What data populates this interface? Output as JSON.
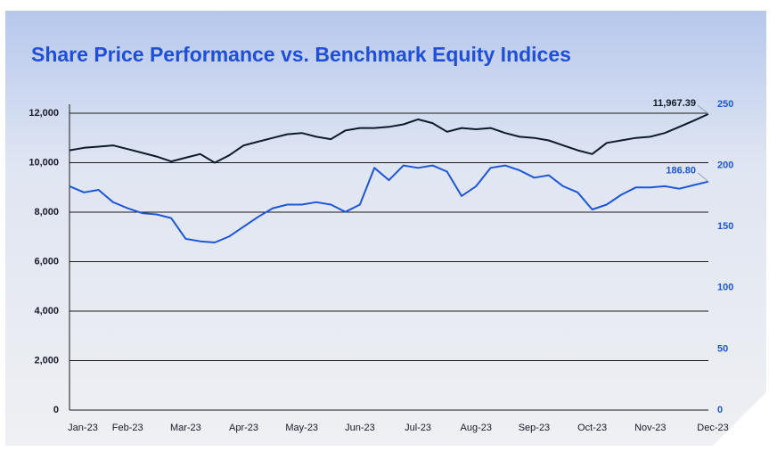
{
  "chart_data": {
    "type": "line",
    "title": "Share Price Performance vs. Benchmark Equity Indices",
    "categories": [
      "Jan-23",
      null,
      null,
      null,
      "Feb-23",
      null,
      null,
      null,
      "Mar-23",
      null,
      null,
      null,
      "Apr-23",
      null,
      null,
      null,
      "May-23",
      null,
      null,
      null,
      "Jun-23",
      null,
      null,
      null,
      "Jul-23",
      null,
      null,
      null,
      "Aug-23",
      null,
      null,
      null,
      "Sep-23",
      null,
      null,
      null,
      "Oct-23",
      null,
      null,
      null,
      "Nov-23",
      null,
      null,
      null,
      "Dec-23"
    ],
    "series": [
      {
        "color": "#0d1b2a",
        "axis": "y",
        "values": [
          10500,
          10600,
          10650,
          10700,
          10550,
          10400,
          10250,
          10050,
          10200,
          10350,
          10000,
          10300,
          10700,
          10850,
          11000,
          11150,
          11200,
          11050,
          10950,
          11300,
          11400,
          11400,
          11450,
          11550,
          11750,
          11600,
          11250,
          11400,
          11350,
          11400,
          11200,
          11050,
          11000,
          10900,
          10700,
          10500,
          10350,
          10800,
          10900,
          11000,
          11050,
          11200,
          11450,
          11700,
          11967.39
        ],
        "value_labels": [
          null,
          null,
          null,
          null,
          null,
          null,
          null,
          null,
          null,
          null,
          null,
          null,
          null,
          null,
          null,
          null,
          null,
          null,
          null,
          null,
          null,
          null,
          null,
          null,
          null,
          null,
          null,
          null,
          null,
          null,
          null,
          null,
          null,
          null,
          null,
          null,
          null,
          null,
          null,
          null,
          null,
          null,
          null,
          null,
          "11,967.39"
        ]
      },
      {
        "color": "#1e56d8",
        "axis": "y2",
        "values": [
          183,
          178,
          180,
          170,
          165,
          161,
          160,
          157,
          140,
          138,
          137,
          142,
          150,
          158,
          165,
          168,
          168,
          170,
          168,
          162,
          168,
          198,
          188,
          200,
          198,
          200,
          195,
          175,
          183,
          198,
          200,
          196,
          190,
          192,
          183,
          178,
          164,
          168,
          176,
          182,
          182,
          183,
          181,
          184,
          186.8
        ],
        "value_labels": [
          null,
          null,
          null,
          null,
          null,
          null,
          null,
          null,
          null,
          null,
          null,
          null,
          null,
          null,
          null,
          null,
          null,
          null,
          null,
          null,
          null,
          null,
          null,
          null,
          null,
          null,
          null,
          null,
          null,
          null,
          null,
          null,
          null,
          null,
          null,
          null,
          null,
          null,
          null,
          null,
          null,
          null,
          null,
          null,
          "186.80"
        ]
      }
    ],
    "ylim": [
      0,
      12360
    ],
    "yticks": [
      0,
      {
        "value": 2000,
        "label": "2,000"
      },
      {
        "value": 4000,
        "label": "4,000"
      },
      {
        "value": 6000,
        "label": "6,000"
      },
      {
        "value": 8000,
        "label": "8,000"
      },
      {
        "value": 10000,
        "label": "10,000"
      },
      {
        "value": 12000,
        "label": "12,000"
      }
    ],
    "y2lim": [
      0,
      250
    ],
    "y2ticks": [
      0,
      50,
      100,
      150,
      200,
      250
    ],
    "grid": true
  }
}
